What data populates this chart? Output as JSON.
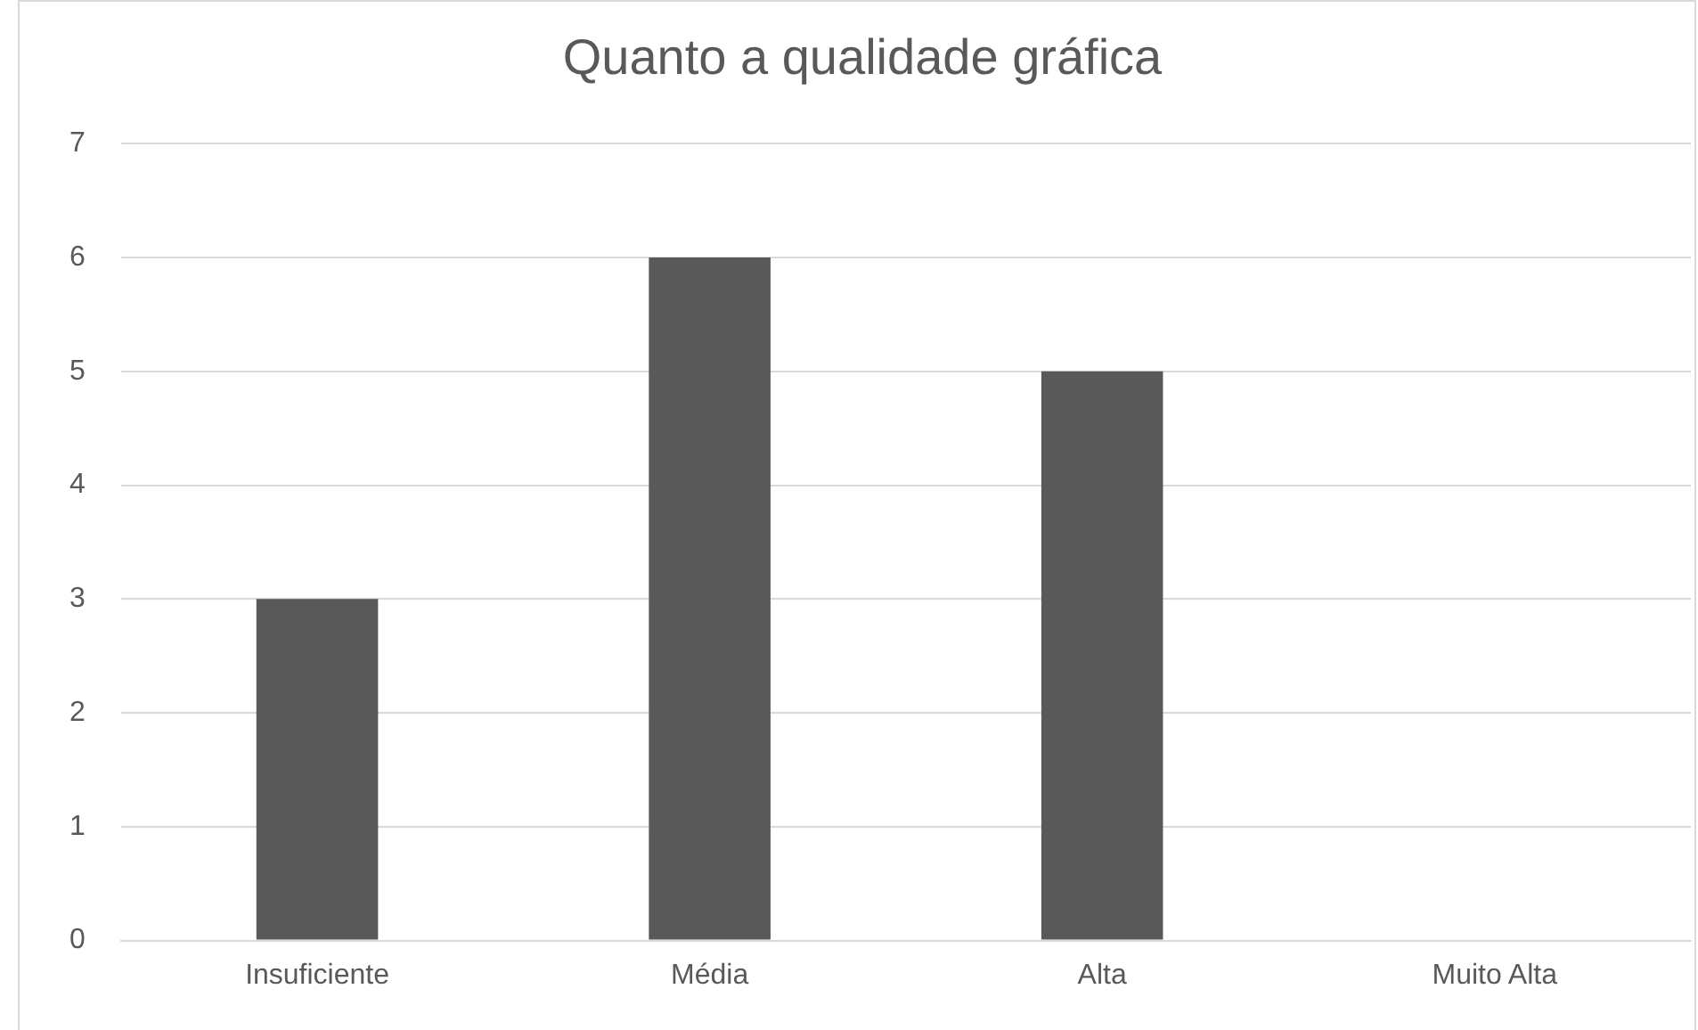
{
  "chart_data": {
    "type": "bar",
    "title": "Quanto a qualidade gráfica",
    "categories": [
      "Insuficiente",
      "Média",
      "Alta",
      "Muito Alta"
    ],
    "values": [
      3,
      6,
      5,
      0
    ],
    "color": "#595959",
    "ylim": [
      0,
      7
    ],
    "yticks": [
      0,
      1,
      2,
      3,
      4,
      5,
      6,
      7
    ],
    "grid": "y",
    "legend": false
  }
}
